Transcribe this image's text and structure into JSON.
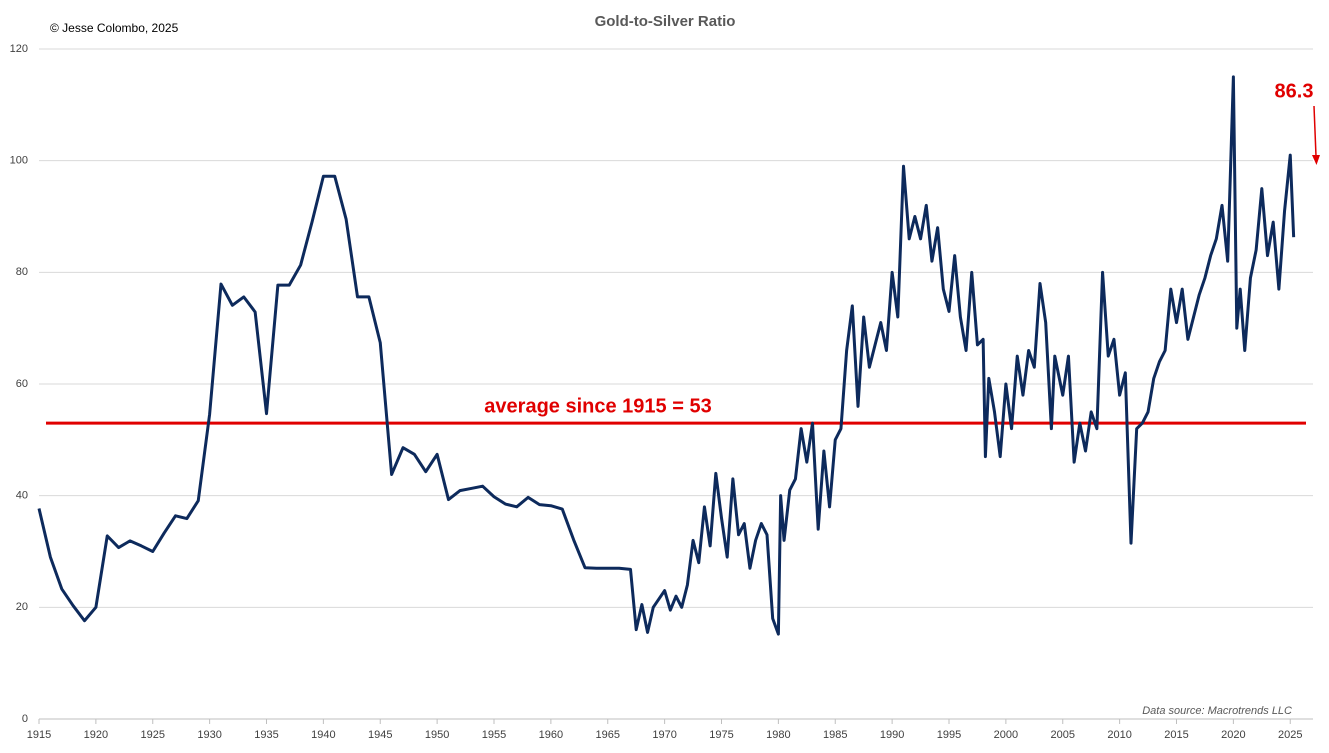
{
  "chart_data": {
    "type": "line",
    "title": "Gold-to-Silver Ratio",
    "subtitle": "© Jesse Colombo, 2025",
    "source": "Data source: Macrotrends LLC",
    "xlim": [
      1915,
      2027
    ],
    "xticks": [
      1915,
      1920,
      1925,
      1930,
      1935,
      1940,
      1945,
      1950,
      1955,
      1960,
      1965,
      1970,
      1975,
      1980,
      1985,
      1990,
      1995,
      2000,
      2005,
      2010,
      2015,
      2020,
      2025
    ],
    "ylim": [
      0,
      120
    ],
    "yticks": [
      0,
      20,
      40,
      60,
      80,
      100,
      120
    ],
    "grid": true,
    "average_line": {
      "value": 53,
      "label": "average since 1915 = 53",
      "color": "#e00000"
    },
    "end_annotation": {
      "text": "86.3",
      "color": "#e00000"
    },
    "series": [
      {
        "name": "Gold-to-Silver Ratio",
        "color": "#0d2a5c",
        "x": [
          1915,
          1916,
          1917,
          1918,
          1919,
          1920,
          1921,
          1922,
          1923,
          1924,
          1925,
          1926,
          1927,
          1928,
          1929,
          1930,
          1931,
          1932,
          1933,
          1934,
          1935,
          1936,
          1937,
          1938,
          1939,
          1940,
          1941,
          1942,
          1943,
          1944,
          1945,
          1946,
          1947,
          1948,
          1949,
          1950,
          1951,
          1952,
          1953,
          1954,
          1955,
          1956,
          1957,
          1958,
          1959,
          1960,
          1961,
          1962,
          1963,
          1964,
          1965,
          1966,
          1967,
          1967.5,
          1968,
          1968.5,
          1969,
          1970,
          1970.5,
          1971,
          1971.5,
          1972,
          1972.5,
          1973,
          1973.5,
          1974,
          1974.5,
          1975,
          1975.5,
          1976,
          1976.5,
          1977,
          1977.5,
          1978,
          1978.5,
          1979,
          1979.5,
          1980,
          1980.2,
          1980.5,
          1981,
          1981.5,
          1982,
          1982.5,
          1983,
          1983.5,
          1984,
          1984.5,
          1985,
          1985.5,
          1986,
          1986.5,
          1987,
          1987.5,
          1988,
          1988.5,
          1989,
          1989.5,
          1990,
          1990.5,
          1991,
          1991.5,
          1992,
          1992.5,
          1993,
          1993.5,
          1994,
          1994.5,
          1995,
          1995.5,
          1996,
          1996.5,
          1997,
          1997.5,
          1998,
          1998.2,
          1998.5,
          1999,
          1999.5,
          2000,
          2000.5,
          2001,
          2001.5,
          2002,
          2002.5,
          2003,
          2003.5,
          2004,
          2004.3,
          2005,
          2005.5,
          2006,
          2006.5,
          2007,
          2007.5,
          2008,
          2008.5,
          2009,
          2009.5,
          2010,
          2010.5,
          2011,
          2011.5,
          2012,
          2012.5,
          2013,
          2013.5,
          2014,
          2014.5,
          2015,
          2015.5,
          2016,
          2016.5,
          2017,
          2017.5,
          2018,
          2018.5,
          2019,
          2019.5,
          2020,
          2020.3,
          2020.6,
          2021,
          2021.5,
          2022,
          2022.5,
          2023,
          2023.5,
          2024,
          2024.5,
          2025,
          2025.3
        ],
        "values": [
          37.7,
          29,
          23.3,
          20.3,
          17.6,
          20,
          32.8,
          30.7,
          31.9,
          31,
          30,
          33.3,
          36.4,
          35.9,
          39.1,
          54.6,
          77.9,
          74.1,
          75.6,
          72.9,
          54.7,
          77.7,
          77.7,
          81.3,
          89,
          97.2,
          97.2,
          89.5,
          75.6,
          75.6,
          67.4,
          43.8,
          48.6,
          47.4,
          44.3,
          47.4,
          39.3,
          40.9,
          41.3,
          41.7,
          39.8,
          38.5,
          38,
          39.7,
          38.4,
          38.2,
          37.6,
          32.1,
          27.1,
          27,
          27,
          27,
          26.8,
          16,
          20.5,
          15.5,
          20,
          23,
          19.5,
          22,
          20,
          24,
          32,
          28,
          38,
          31,
          44,
          36,
          29,
          43,
          33,
          35,
          27,
          32,
          35,
          33,
          18,
          15.2,
          40,
          32,
          41,
          43,
          52,
          46,
          53,
          34,
          48,
          38,
          50,
          52,
          66,
          74,
          56,
          72,
          63,
          67,
          71,
          66,
          80,
          72,
          99,
          86,
          90,
          86,
          92,
          82,
          88,
          77,
          73,
          83,
          72,
          66,
          80,
          67,
          68,
          47,
          61,
          55,
          47,
          60,
          52,
          65,
          58,
          66,
          63,
          78,
          71,
          52,
          65,
          58,
          65,
          46,
          53,
          48,
          55,
          52,
          80,
          65,
          68,
          58,
          62,
          31.5,
          52,
          53,
          55,
          61,
          64,
          66,
          77,
          71,
          77,
          68,
          72,
          76,
          79,
          83,
          86,
          92,
          82,
          115,
          70,
          77,
          66,
          79,
          84,
          95,
          83,
          89,
          77,
          91,
          101,
          86.3
        ]
      }
    ]
  }
}
